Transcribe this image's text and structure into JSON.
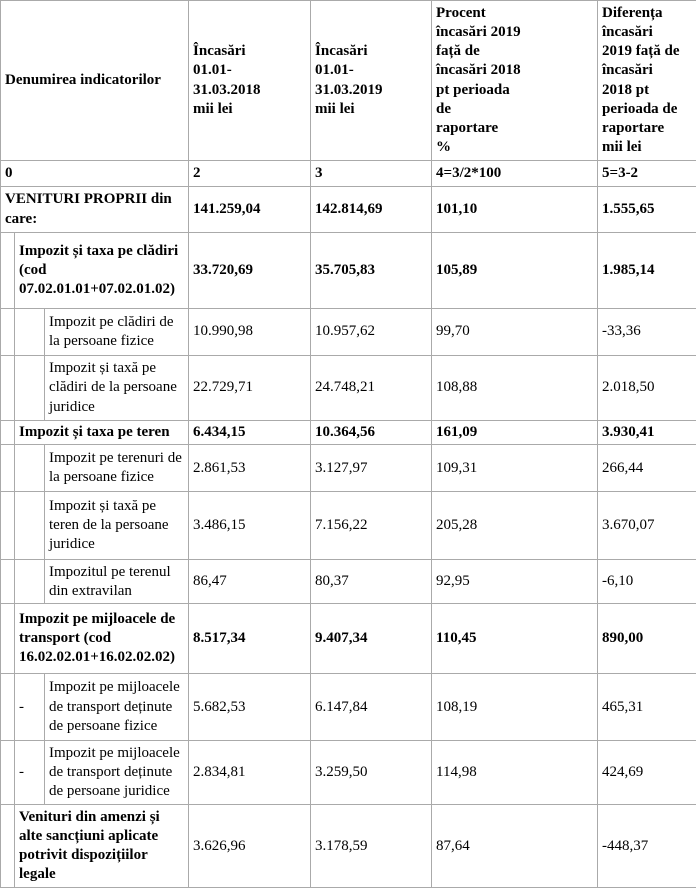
{
  "table": {
    "header": {
      "col_indicators": "Denumirea indicatorilor",
      "col_2018": "Încasări\n01.01-\n31.03.2018\nmii lei",
      "col_2019": "Încasări\n01.01-\n31.03.2019\nmii lei",
      "col_percent": "Procent\nîncasări 2019\nfață de\nîncasări 2018\npt perioada\nde\nraportare\n%",
      "col_diff": "Diferența\nîncasări\n2019 față de\nîncasări\n2018 pt\nperioada de\nraportare\nmii lei"
    },
    "numbering": [
      "0",
      "2",
      "3",
      "4=3/2*100",
      "5=3-2"
    ],
    "rows": [
      {
        "level": 0,
        "marker": "",
        "bold_label": true,
        "bold_values": true,
        "label": "VENITURI PROPRII din care:",
        "v2018": "141.259,04",
        "v2019": "142.814,69",
        "percent": "101,10",
        "diff": "1.555,65"
      },
      {
        "level": 1,
        "marker": "",
        "bold_label": true,
        "bold_values": true,
        "label": "Impozit și taxa pe clădiri (cod 07.02.01.01+07.02.01.02)",
        "v2018": "33.720,69",
        "v2019": "35.705,83",
        "percent": "105,89",
        "diff": "1.985,14"
      },
      {
        "level": 2,
        "marker": "",
        "bold_label": false,
        "bold_values": false,
        "label": "Impozit pe clădiri de la persoane fizice",
        "v2018": "10.990,98",
        "v2019": "10.957,62",
        "percent": "99,70",
        "diff": "-33,36"
      },
      {
        "level": 2,
        "marker": "",
        "bold_label": false,
        "bold_values": false,
        "label": "Impozit și taxă pe clădiri de la persoane juridice",
        "v2018": "22.729,71",
        "v2019": "24.748,21",
        "percent": "108,88",
        "diff": "2.018,50"
      },
      {
        "level": 1,
        "marker": "",
        "bold_label": true,
        "bold_values": true,
        "label": "Impozit și taxa pe teren",
        "v2018": "6.434,15",
        "v2019": "10.364,56",
        "percent": "161,09",
        "diff": "3.930,41"
      },
      {
        "level": 2,
        "marker": "",
        "bold_label": false,
        "bold_values": false,
        "label": "Impozit pe terenuri de la persoane fizice",
        "v2018": "2.861,53",
        "v2019": "3.127,97",
        "percent": "109,31",
        "diff": "266,44"
      },
      {
        "level": 2,
        "marker": "",
        "bold_label": false,
        "bold_values": false,
        "label": "Impozit și taxă pe teren de la persoane juridice",
        "v2018": "3.486,15",
        "v2019": "7.156,22",
        "percent": "205,28",
        "diff": "3.670,07"
      },
      {
        "level": 2,
        "marker": "",
        "bold_label": false,
        "bold_values": false,
        "label": "Impozitul pe terenul din extravilan",
        "v2018": "86,47",
        "v2019": "80,37",
        "percent": "92,95",
        "diff": "-6,10"
      },
      {
        "level": 1,
        "marker": "",
        "bold_label": true,
        "bold_values": true,
        "label": "Impozit pe mijloacele de transport (cod 16.02.02.01+16.02.02.02)",
        "v2018": "8.517,34",
        "v2019": "9.407,34",
        "percent": "110,45",
        "diff": "890,00"
      },
      {
        "level": 2,
        "marker": "-",
        "bold_label": false,
        "bold_values": false,
        "label": "Impozit pe mijloacele de transport deținute de persoane fizice",
        "v2018": "5.682,53",
        "v2019": "6.147,84",
        "percent": "108,19",
        "diff": "465,31"
      },
      {
        "level": 2,
        "marker": "-",
        "bold_label": false,
        "bold_values": false,
        "label": "Impozit pe mijloacele de transport deținute de persoane juridice",
        "v2018": "2.834,81",
        "v2019": "3.259,50",
        "percent": "114,98",
        "diff": "424,69"
      },
      {
        "level": 1,
        "marker": "",
        "bold_label": true,
        "bold_values": false,
        "label": "Venituri din amenzi și alte sancțiuni aplicate potrivit dispozițiilor legale",
        "v2018": "3.626,96",
        "v2019": "3.178,59",
        "percent": "87,64",
        "diff": "-448,37"
      }
    ]
  }
}
